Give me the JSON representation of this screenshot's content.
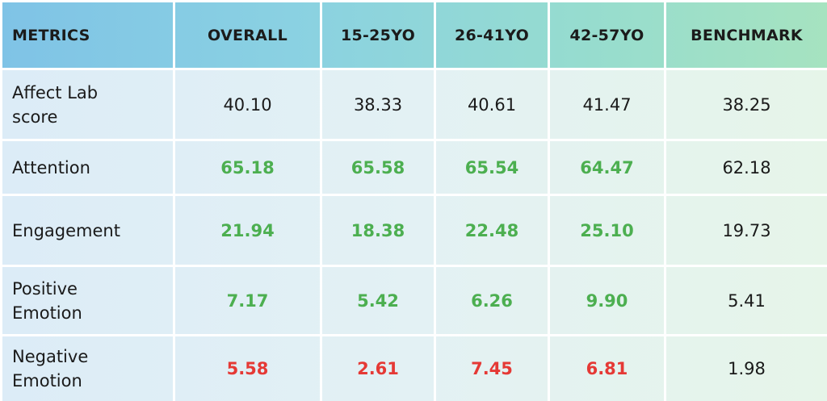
{
  "chart_data": {
    "type": "table",
    "columns": [
      "METRICS",
      "OVERALL",
      "15-25YO",
      "26-41YO",
      "42-57YO",
      "BENCHMARK"
    ],
    "rows": [
      {
        "metric": "Affect Lab\nscore",
        "values": [
          "40.10",
          "38.33",
          "40.61",
          "41.47",
          "38.25"
        ],
        "status": [
          "normal",
          "normal",
          "normal",
          "normal",
          "normal"
        ]
      },
      {
        "metric": "Attention",
        "values": [
          "65.18",
          "65.58",
          "65.54",
          "64.47",
          "62.18"
        ],
        "status": [
          "good",
          "good",
          "good",
          "good",
          "normal"
        ]
      },
      {
        "metric": "Engagement",
        "values": [
          "21.94",
          "18.38",
          "22.48",
          "25.10",
          "19.73"
        ],
        "status": [
          "good",
          "good",
          "good",
          "good",
          "normal"
        ]
      },
      {
        "metric": "Positive\nEmotion",
        "values": [
          "7.17",
          "5.42",
          "6.26",
          "9.90",
          "5.41"
        ],
        "status": [
          "good",
          "good",
          "good",
          "good",
          "normal"
        ]
      },
      {
        "metric": "Negative\nEmotion",
        "values": [
          "5.58",
          "2.61",
          "7.45",
          "6.81",
          "1.98"
        ],
        "status": [
          "bad",
          "bad",
          "bad",
          "bad",
          "normal"
        ]
      }
    ]
  },
  "colors": {
    "good": "#4caf50",
    "bad": "#e53935",
    "header_start": "#7fc3e6",
    "header_end": "#a6e3c0"
  }
}
